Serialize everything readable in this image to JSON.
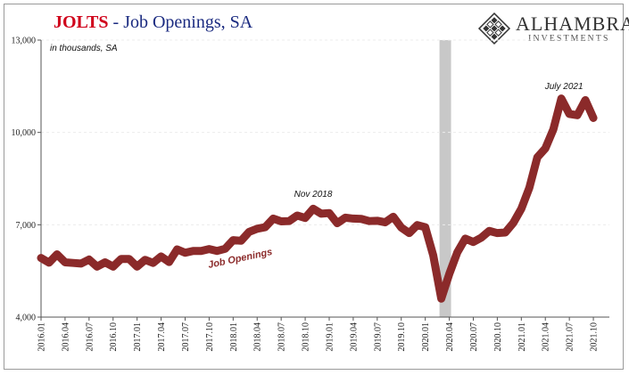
{
  "header": {
    "title_main": "JOLTS",
    "title_rest": " - Job Openings, SA"
  },
  "logo": {
    "name": "ALHAMBRA",
    "sub": "INVESTMENTS",
    "icon": "diamond-grid-icon"
  },
  "colors": {
    "title_red": "#d0021b",
    "title_blue": "#1a2a80",
    "series": "#8b2a2a",
    "recession_band": "#c8c8c8"
  },
  "chart_data": {
    "type": "line",
    "unit_note": "in thousands, SA",
    "ylim": [
      4000,
      13000
    ],
    "yticks": [
      4000,
      7000,
      10000,
      13000
    ],
    "ytick_labels": [
      "4,000",
      "7,000",
      "10,000",
      "13,000"
    ],
    "xlabels": [
      "2016.01",
      "2016.04",
      "2016.07",
      "2016.10",
      "2017.01",
      "2017.04",
      "2017.07",
      "2017.10",
      "2018.01",
      "2018.04",
      "2018.07",
      "2018.10",
      "2019.01",
      "2019.04",
      "2019.07",
      "2019.10",
      "2020.01",
      "2020.04",
      "2020.07",
      "2020.10",
      "2021.01",
      "2021.04",
      "2021.07",
      "2021.10"
    ],
    "recession": {
      "start": "2020.03",
      "end": "2020.04"
    },
    "series": [
      {
        "name": "Job Openings",
        "start": "2016.01",
        "values": [
          5920,
          5770,
          6040,
          5780,
          5760,
          5740,
          5870,
          5640,
          5780,
          5640,
          5890,
          5890,
          5640,
          5860,
          5760,
          5970,
          5790,
          6200,
          6090,
          6150,
          6150,
          6210,
          6150,
          6220,
          6500,
          6480,
          6770,
          6870,
          6920,
          7200,
          7110,
          7120,
          7300,
          7220,
          7520,
          7360,
          7380,
          7050,
          7230,
          7200,
          7190,
          7120,
          7130,
          7080,
          7260,
          6910,
          6730,
          6990,
          6920,
          6000,
          4600,
          5400,
          6100,
          6550,
          6440,
          6580,
          6800,
          6730,
          6750,
          7060,
          7520,
          8200,
          9190,
          9480,
          10100,
          11100,
          10600,
          10560,
          11050,
          10470
        ]
      }
    ],
    "annotations": [
      {
        "text": "Nov 2018",
        "at": "2018.11"
      },
      {
        "text": "July 2021",
        "at": "2021.07"
      }
    ]
  }
}
